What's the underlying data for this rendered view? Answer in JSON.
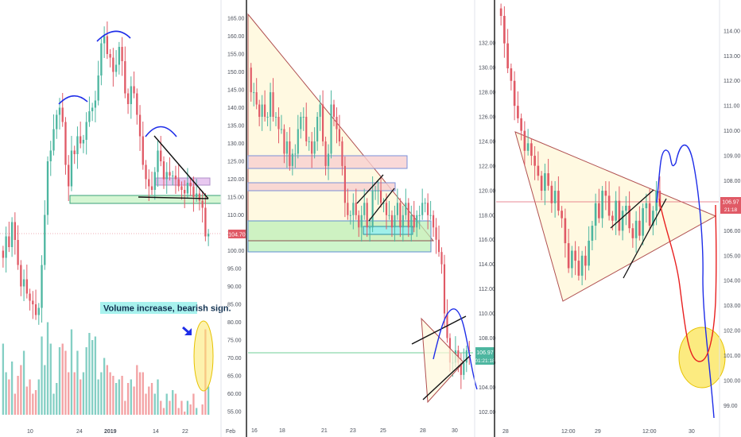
{
  "colors": {
    "up": "#4db6a0",
    "down": "#e05a66",
    "vol_up": "#84cfc4",
    "vol_down": "#f3a2a4",
    "price_line": "#e06070",
    "tri_stroke": "#b05050",
    "tri_fill": "#fff8dc",
    "zone_green": "#b9f0b5",
    "zone_red": "#f8d0d0",
    "zone_cyan": "#9ff0ea",
    "ellipse": "#fbe86a",
    "blue": "#1e2de8",
    "red_path": "#e82020",
    "hline_green": "#6fcf97",
    "annotation_bg": "#a8f2ee"
  },
  "panel1": {
    "price_label": "104.70",
    "annotation": "Volume increase, bearish sign.",
    "arrow_icon": "arrow-down-right-icon"
  },
  "panel2": {
    "price_label": "106.97",
    "countdown": "01:21:18"
  },
  "panel3": {
    "price_label": "106.97",
    "countdown": "21:18"
  },
  "chart_data": [
    {
      "type": "candlestick",
      "title": "",
      "x_ticks": [
        "10",
        "24",
        "2019",
        "14",
        "22",
        "Feb"
      ],
      "y_ticks": [
        165,
        160,
        155,
        150,
        145,
        140,
        135,
        130,
        125,
        120,
        115,
        110,
        105,
        100,
        95,
        90,
        85,
        80,
        75,
        70,
        65,
        60,
        55
      ],
      "y_tick_labels": [
        "165.00",
        "160.00",
        "155.00",
        "150.00",
        "145.00",
        "140.00",
        "135.00",
        "130.00",
        "125.00",
        "120.00",
        "115.00",
        "110.00",
        "105.00",
        "100.00",
        "95.00",
        "90.00",
        "85.00",
        "80.00",
        "75.00",
        "70.00",
        "65.00",
        "60.00",
        "55.00"
      ],
      "ylim": [
        53,
        167
      ],
      "last_price": 104.7,
      "closes": [
        98,
        104,
        101,
        108,
        103,
        96,
        90,
        92,
        88,
        86,
        85,
        82,
        84,
        96,
        110,
        125,
        128,
        134,
        138,
        140,
        136,
        124,
        118,
        128,
        127,
        132,
        130,
        131,
        136,
        139,
        140,
        142,
        149,
        158,
        160,
        155,
        154,
        150,
        152,
        157,
        153,
        144,
        141,
        146,
        144,
        138,
        132,
        124,
        120,
        118,
        117,
        122,
        128,
        125,
        120,
        122,
        121,
        121,
        120,
        118,
        117,
        116,
        119,
        118,
        115,
        116,
        114,
        112,
        104,
        104.7
      ],
      "volumes": [
        74,
        66,
        64,
        69,
        60,
        65,
        68,
        72,
        62,
        64,
        60,
        61,
        64,
        76,
        68,
        80,
        74,
        60,
        63,
        73,
        74,
        72,
        66,
        78,
        66,
        72,
        64,
        66,
        73,
        77,
        75,
        76,
        64,
        66,
        70,
        68,
        66,
        65,
        63,
        64,
        65,
        58,
        63,
        64,
        62,
        68,
        66,
        66,
        60,
        62,
        63,
        60,
        64,
        58,
        56,
        60,
        58,
        61,
        60,
        56,
        58,
        55,
        58,
        57,
        60,
        56,
        54,
        57,
        78,
        62
      ],
      "notes": [
        "Volume increase, bearish sign."
      ]
    },
    {
      "type": "candlestick",
      "title": "",
      "x_ticks": [
        "16",
        "18",
        "21",
        "23",
        "25",
        "28",
        "30"
      ],
      "y_ticks": [
        132,
        130,
        128,
        126,
        124,
        122,
        120,
        118,
        116,
        114,
        112,
        110,
        108,
        106,
        104,
        102
      ],
      "y_tick_labels": [
        "132.00",
        "130.00",
        "128.00",
        "126.00",
        "124.00",
        "122.00",
        "120.00",
        "118.00",
        "116.00",
        "114.00",
        "112.00",
        "110.00",
        "108.00",
        "106.00",
        "104.00",
        "102.00"
      ],
      "ylim": [
        101.5,
        133.5
      ],
      "last_price": 106.97,
      "closes": [
        128,
        128,
        127,
        126,
        127,
        126,
        126,
        128,
        126,
        126,
        125,
        125,
        123,
        124,
        122,
        123,
        123,
        125,
        126,
        126,
        124,
        124,
        123,
        124,
        126,
        127,
        124,
        122,
        123,
        127,
        126,
        125,
        124,
        122,
        119,
        118,
        118,
        119,
        118,
        117,
        118,
        119,
        117,
        117,
        120,
        120,
        120,
        119,
        119,
        118,
        118,
        117,
        118,
        119,
        117,
        118,
        119,
        117,
        118,
        117,
        118,
        118,
        119,
        119,
        118,
        118,
        117,
        116,
        115,
        114,
        110,
        108,
        106,
        106,
        107,
        106,
        105,
        106,
        107,
        106.97
      ],
      "notes": []
    },
    {
      "type": "candlestick",
      "title": "",
      "x_ticks": [
        "28",
        "12:00",
        "29",
        "12:00",
        "30"
      ],
      "y_ticks": [
        114,
        113,
        112,
        111,
        110,
        109,
        108,
        107,
        106,
        105,
        104,
        103,
        102,
        101,
        100,
        99
      ],
      "y_tick_labels": [
        "114.00",
        "113.00",
        "112.00",
        "111.00",
        "110.00",
        "109.00",
        "108.00",
        "107.00",
        "106.00",
        "105.00",
        "104.00",
        "103.00",
        "102.00",
        "101.00",
        "100.00",
        "99.00"
      ],
      "ylim": [
        98.6,
        114.6
      ],
      "last_price": 106.97,
      "closes": [
        114.6,
        113.5,
        112.5,
        112,
        111,
        110.5,
        110,
        109.2,
        109.5,
        109,
        108.6,
        108.2,
        107.6,
        108.3,
        107.8,
        107.1,
        107.6,
        106.8,
        106.5,
        105.5,
        104.5,
        105.2,
        104.8,
        104.2,
        105,
        104.6,
        105.6,
        106.2,
        107.1,
        106.5,
        107.6,
        107.4,
        106.6,
        106.4,
        107.2,
        106,
        106.8,
        107,
        106.1,
        105.7,
        106.4,
        105.8,
        106.9,
        107.1,
        106.2,
        106.8,
        107.6,
        106.97
      ],
      "notes": []
    }
  ]
}
